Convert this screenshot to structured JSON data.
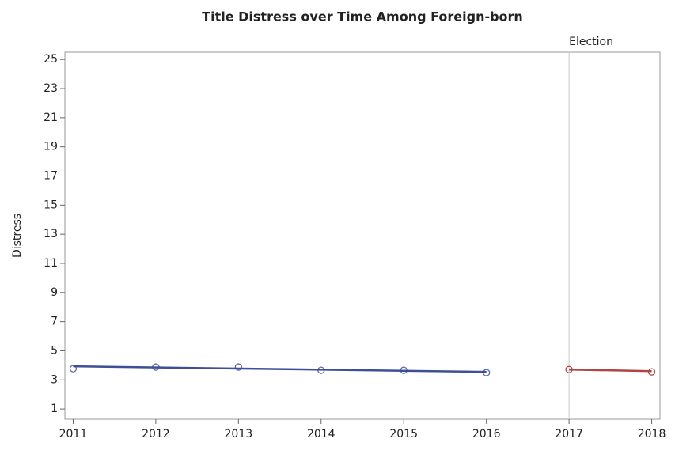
{
  "chart_data": {
    "type": "scatter",
    "title": "Title Distress over Time Among Foreign-born",
    "y_label": "Distress",
    "xlim": [
      2010.9,
      2018.1
    ],
    "xticks": [
      2011,
      2012,
      2013,
      2014,
      2015,
      2016,
      2017,
      2018
    ],
    "ylim": [
      0.3,
      25.5
    ],
    "yticks": [
      1,
      3,
      5,
      7,
      9,
      11,
      13,
      15,
      17,
      19,
      21,
      23,
      25
    ],
    "reference_lines": [
      {
        "x": 2017,
        "label": "Election",
        "color": "#c8c8c8"
      }
    ],
    "series": [
      {
        "style": "markers",
        "color": "#5a6aa8",
        "x": [
          2011,
          2012,
          2013,
          2014,
          2015,
          2016
        ],
        "values": [
          3.77,
          3.88,
          3.88,
          3.66,
          3.66,
          3.5
        ]
      },
      {
        "style": "line",
        "color": "#3d4f96",
        "x": [
          2011,
          2016
        ],
        "values": [
          3.93,
          3.55
        ]
      },
      {
        "style": "markers",
        "color": "#b04545",
        "x": [
          2017,
          2018
        ],
        "values": [
          3.71,
          3.55
        ]
      },
      {
        "style": "line",
        "color": "#b04545",
        "x": [
          2017,
          2018
        ],
        "values": [
          3.71,
          3.6
        ]
      }
    ]
  }
}
